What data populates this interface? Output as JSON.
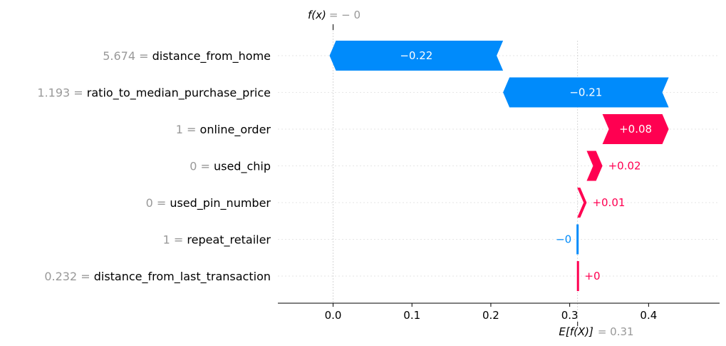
{
  "chart_data": {
    "type": "waterfall",
    "fx_label": "f(x)",
    "fx_value": "= − 0",
    "fx": -0.0,
    "base_label": "E[f(X)]",
    "base_value_text": "= 0.31",
    "base_value": 0.31,
    "xlim": [
      -0.07,
      0.49
    ],
    "ticks": [
      0.0,
      0.1,
      0.2,
      0.3,
      0.4
    ],
    "tick_labels": [
      "0.0",
      "0.1",
      "0.2",
      "0.3",
      "0.4"
    ],
    "features": [
      {
        "value": "5.674",
        "eq": "=",
        "name": "distance_from_home",
        "shap": -0.22,
        "label": "−0.22"
      },
      {
        "value": "1.193",
        "eq": "=",
        "name": "ratio_to_median_purchase_price",
        "shap": -0.21,
        "label": "−0.21"
      },
      {
        "value": "1",
        "eq": "=",
        "name": "online_order",
        "shap": 0.084,
        "label": "+0.08"
      },
      {
        "value": "0",
        "eq": "=",
        "name": "used_chip",
        "shap": 0.02,
        "label": "+0.02"
      },
      {
        "value": "0",
        "eq": "=",
        "name": "used_pin_number",
        "shap": 0.012,
        "label": "+0.01"
      },
      {
        "value": "1",
        "eq": "=",
        "name": "repeat_retailer",
        "shap": -0.002,
        "label": "−0"
      },
      {
        "value": "0.232",
        "eq": "=",
        "name": "distance_from_last_transaction",
        "shap": 0.0015,
        "label": "+0"
      }
    ],
    "colors": {
      "positive": "#ff0051",
      "negative": "#008bfb",
      "inside_text": "#ffffff",
      "grid": "#cccccc",
      "axis": "#000000",
      "annotation_gray": "#999999"
    }
  }
}
